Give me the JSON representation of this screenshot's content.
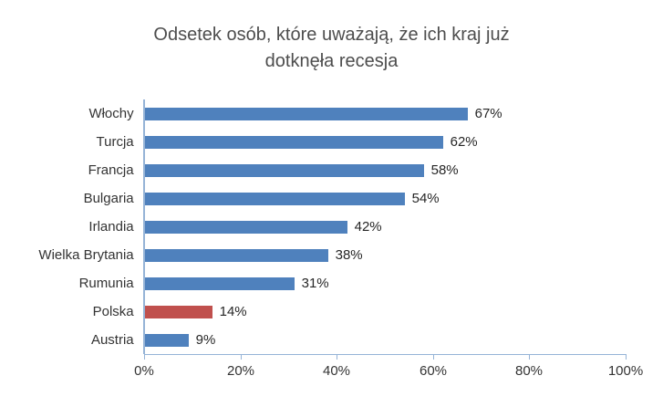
{
  "chart_data": {
    "type": "bar",
    "orientation": "horizontal",
    "title": "Odsetek osób, które uważają, że ich kraj już dotknęła recesja",
    "title_lines": [
      "Odsetek osób, które uważają, że ich kraj już",
      "dotknęła recesja"
    ],
    "categories": [
      "Włochy",
      "Turcja",
      "Francja",
      "Bulgaria",
      "Irlandia",
      "Wielka Brytania",
      "Rumunia",
      "Polska",
      "Austria"
    ],
    "values": [
      67,
      62,
      58,
      54,
      42,
      38,
      31,
      14,
      9
    ],
    "value_labels": [
      "67%",
      "62%",
      "58%",
      "54%",
      "42%",
      "38%",
      "31%",
      "14%",
      "9%"
    ],
    "xlim": [
      0,
      100
    ],
    "x_ticks": [
      "0%",
      "20%",
      "40%",
      "60%",
      "80%",
      "100%"
    ],
    "bar_color": "#4f81bd",
    "highlight_category": "Polska",
    "highlight_color": "#c0504d",
    "axis_color": "#95b3d7",
    "grid": false,
    "legend": false
  }
}
